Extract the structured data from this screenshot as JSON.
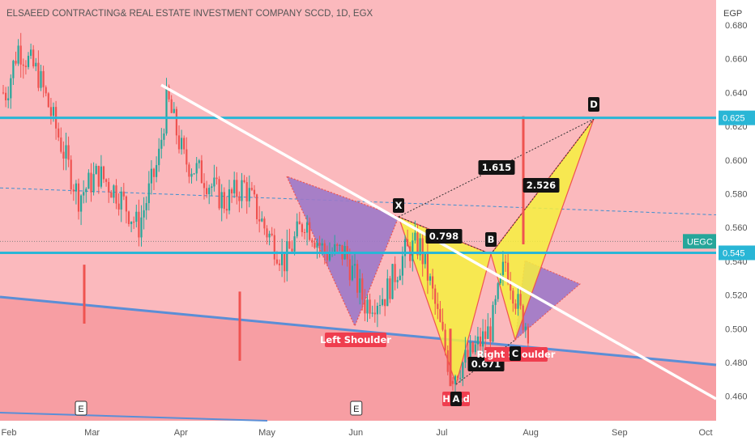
{
  "header": {
    "title": "ELSAEED CONTRACTING& REAL ESTATE INVESTMENT COMPANY SCCD, 1D, EGX",
    "currency": "EGP"
  },
  "colors": {
    "background": "#fbb9bd",
    "lower_zone": "#f79ea3",
    "level_line": "#29b6d6",
    "trendline": "#ffffff",
    "channel_line": "#5b8ed6",
    "dashed_line": "#3d8fd0",
    "pattern_purple": "#9d79c8",
    "pattern_yellow": "#f6f03e",
    "candle_up": "#26a69a",
    "candle_down": "#ef5350",
    "label_black": "#131313",
    "label_red": "#ef3d4e",
    "axis_text": "#555555"
  },
  "price_labels": {
    "level_high": "0.625",
    "level_low": "0.545",
    "symbol_tag": "UEGC"
  },
  "chart_data": {
    "type": "candlestick",
    "title": "ELSAEED CONTRACTING& REAL ESTATE INVESTMENT COMPANY SCCD, 1D, EGX",
    "y_unit": "EGP",
    "ylim": [
      0.449,
      0.684
    ],
    "y_ticks": [
      "0.680",
      "0.660",
      "0.640",
      "0.620",
      "0.600",
      "0.580",
      "0.560",
      "0.540",
      "0.520",
      "0.500",
      "0.480",
      "0.460"
    ],
    "x_ticks": [
      "Feb",
      "Mar",
      "Apr",
      "May",
      "Jun",
      "Jul",
      "Aug",
      "Sep",
      "Oct"
    ],
    "grid": false,
    "key_levels": [
      0.625,
      0.545
    ],
    "harmonic_points": [
      {
        "label": "X",
        "date": "2024-06-24",
        "price": 0.565
      },
      {
        "label": "A",
        "date": "2024-07-05",
        "price": 0.465
      },
      {
        "label": "B",
        "date": "2024-07-24",
        "price": 0.545
      },
      {
        "label": "C",
        "date": "2024-08-01",
        "price": 0.493
      },
      {
        "label": "D",
        "date": "2024-08-28",
        "price": 0.625
      }
    ],
    "ratios": [
      "1.615",
      "2.526",
      "0.798",
      "0.671"
    ],
    "pattern_labels": [
      "Left Shoulder",
      "Right Shoulder",
      "Head"
    ],
    "event_markers": [
      {
        "label": "E",
        "date": "2024-02-27"
      },
      {
        "label": "E",
        "date": "2024-06-02"
      }
    ],
    "candles_close_approx": [
      {
        "date": "2024-02-01",
        "price": 0.64
      },
      {
        "date": "2024-02-05",
        "price": 0.667
      },
      {
        "date": "2024-02-12",
        "price": 0.651
      },
      {
        "date": "2024-02-19",
        "price": 0.615
      },
      {
        "date": "2024-02-26",
        "price": 0.578
      },
      {
        "date": "2024-03-04",
        "price": 0.592
      },
      {
        "date": "2024-03-11",
        "price": 0.58
      },
      {
        "date": "2024-03-18",
        "price": 0.56
      },
      {
        "date": "2024-03-25",
        "price": 0.6
      },
      {
        "date": "2024-03-28",
        "price": 0.637
      },
      {
        "date": "2024-04-03",
        "price": 0.6
      },
      {
        "date": "2024-04-10",
        "price": 0.59
      },
      {
        "date": "2024-04-17",
        "price": 0.575
      },
      {
        "date": "2024-04-24",
        "price": 0.585
      },
      {
        "date": "2024-05-01",
        "price": 0.56
      },
      {
        "date": "2024-05-08",
        "price": 0.54
      },
      {
        "date": "2024-05-15",
        "price": 0.565
      },
      {
        "date": "2024-05-22",
        "price": 0.545
      },
      {
        "date": "2024-05-29",
        "price": 0.545
      },
      {
        "date": "2024-06-05",
        "price": 0.515
      },
      {
        "date": "2024-06-12",
        "price": 0.52
      },
      {
        "date": "2024-06-19",
        "price": 0.545
      },
      {
        "date": "2024-06-24",
        "price": 0.55
      },
      {
        "date": "2024-06-28",
        "price": 0.525
      },
      {
        "date": "2024-07-03",
        "price": 0.488
      },
      {
        "date": "2024-07-05",
        "price": 0.472
      },
      {
        "date": "2024-07-12",
        "price": 0.485
      },
      {
        "date": "2024-07-19",
        "price": 0.5
      },
      {
        "date": "2024-07-24",
        "price": 0.54
      },
      {
        "date": "2024-07-29",
        "price": 0.51
      },
      {
        "date": "2024-08-01",
        "price": 0.5
      },
      {
        "date": "2024-08-05",
        "price": 0.54
      },
      {
        "date": "2024-08-07",
        "price": 0.55
      }
    ]
  }
}
